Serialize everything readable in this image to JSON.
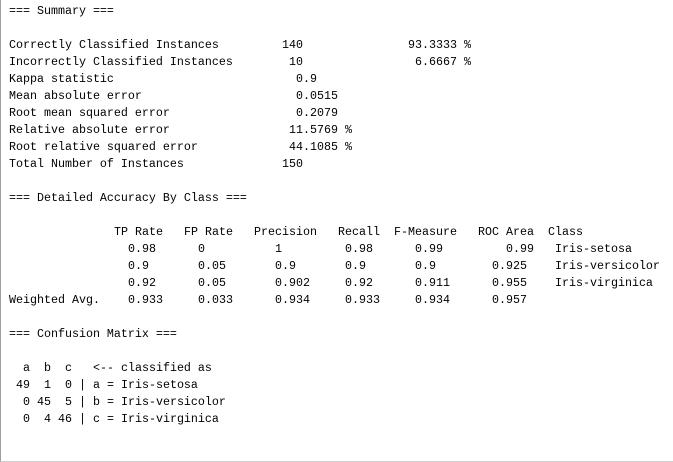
{
  "summary": {
    "heading": "=== Summary ===",
    "rows": [
      {
        "label": "Correctly Classified Instances",
        "value": "140",
        "percent": "93.3333 %"
      },
      {
        "label": "Incorrectly Classified Instances",
        "value": "10",
        "percent": "6.6667 %"
      },
      {
        "label": "Kappa statistic",
        "value": "0.9"
      },
      {
        "label": "Mean absolute error",
        "value": "0.0515"
      },
      {
        "label": "Root mean squared error",
        "value": "0.2079"
      },
      {
        "label": "Relative absolute error",
        "value": "11.5769 %"
      },
      {
        "label": "Root relative squared error",
        "value": "44.1085 %"
      },
      {
        "label": "Total Number of Instances",
        "value": "150"
      }
    ]
  },
  "accuracy": {
    "heading": "=== Detailed Accuracy By Class ===",
    "columns": [
      "TP Rate",
      "FP Rate",
      "Precision",
      "Recall",
      "F-Measure",
      "ROC Area",
      "Class"
    ],
    "rows": [
      {
        "values": [
          "0.98",
          "0",
          "1",
          "0.98",
          "0.99",
          "0.99"
        ],
        "class": "Iris-setosa"
      },
      {
        "values": [
          "0.9",
          "0.05",
          "0.9",
          "0.9",
          "0.9",
          "0.925"
        ],
        "class": "Iris-versicolor"
      },
      {
        "values": [
          "0.92",
          "0.05",
          "0.902",
          "0.92",
          "0.911",
          "0.955"
        ],
        "class": "Iris-virginica"
      },
      {
        "label": "Weighted Avg.",
        "values": [
          "0.933",
          "0.033",
          "0.934",
          "0.933",
          "0.934",
          "0.957"
        ]
      }
    ]
  },
  "confusion": {
    "heading": "=== Confusion Matrix ===",
    "header": [
      "a",
      "b",
      "c"
    ],
    "header_note": "<-- classified as",
    "rows": [
      {
        "counts": [
          "49",
          "1",
          "0"
        ],
        "separator": "|",
        "label": "a = Iris-setosa"
      },
      {
        "counts": [
          "0",
          "45",
          "5"
        ],
        "separator": "|",
        "label": "b = Iris-versicolor"
      },
      {
        "counts": [
          "0",
          "4",
          "46"
        ],
        "separator": "|",
        "label": "c = Iris-virginica"
      }
    ]
  }
}
